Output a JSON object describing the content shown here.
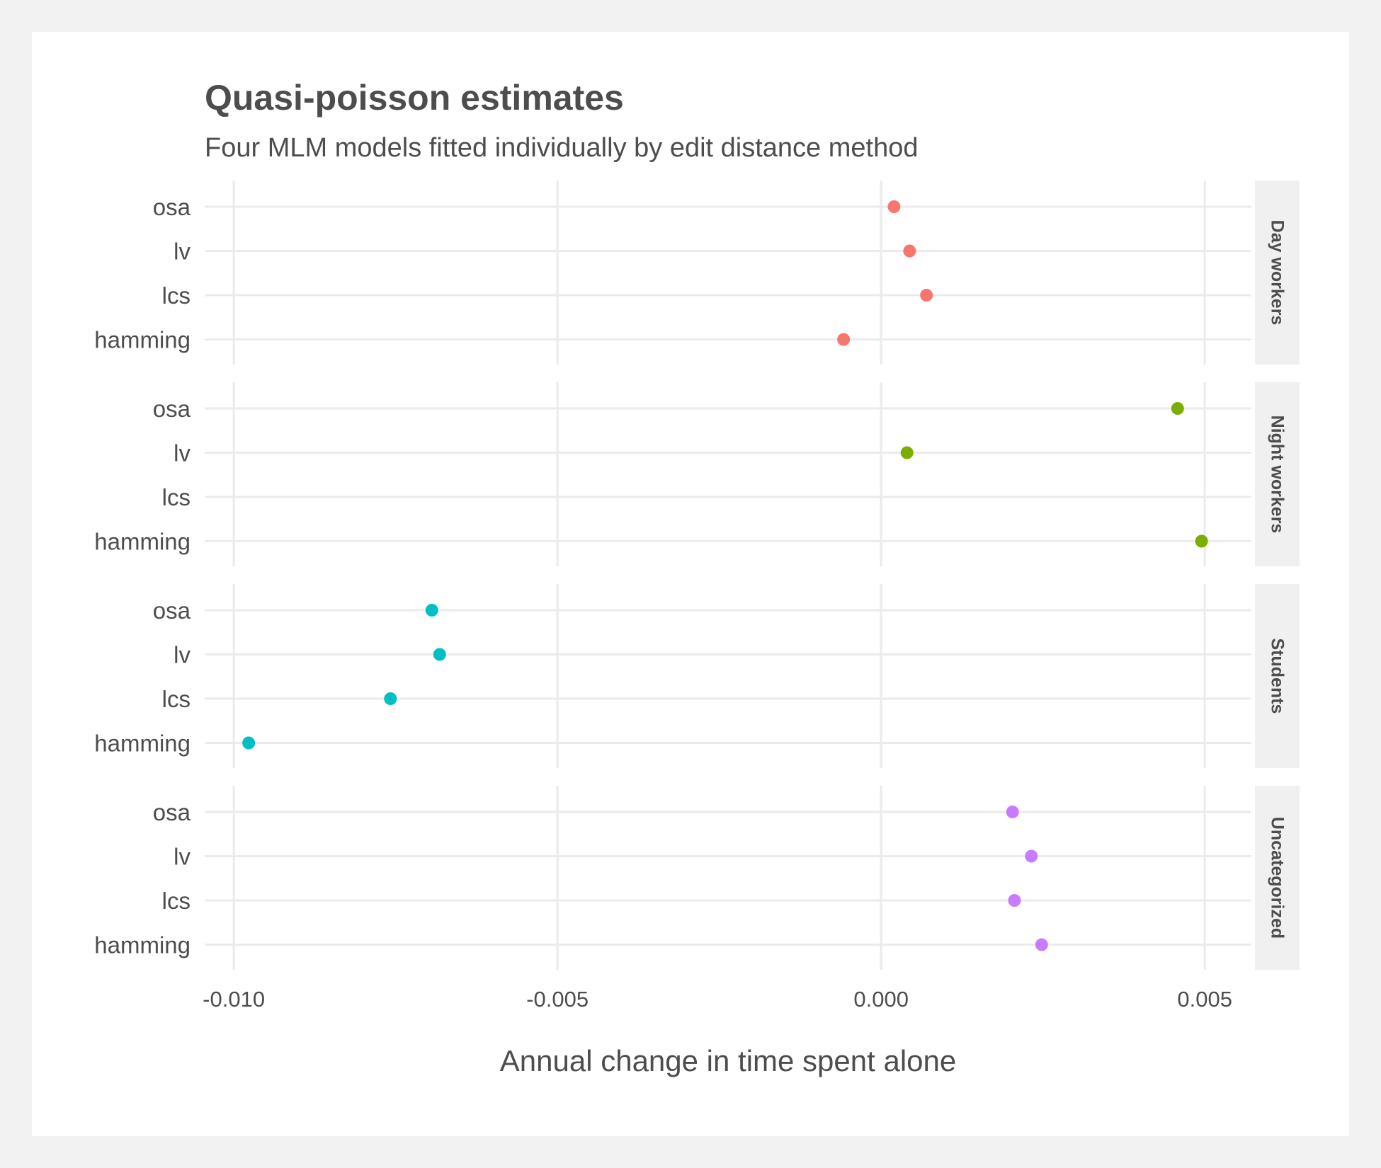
{
  "chart_data": {
    "type": "scatter",
    "title": "Quasi-poisson estimates",
    "subtitle": "Four MLM models fitted individually by edit distance method",
    "xlabel": "Annual change in time spent alone",
    "ylabel": "",
    "xlim": [
      -0.01045,
      0.00572
    ],
    "x_ticks": [
      -0.01,
      -0.005,
      0.0,
      0.005
    ],
    "x_tick_labels": [
      "-0.010",
      "-0.005",
      "0.000",
      "0.005"
    ],
    "categories": [
      "osa",
      "lv",
      "lcs",
      "hamming"
    ],
    "grid": true,
    "legend": "none",
    "facets": [
      {
        "name": "Day workers",
        "color": "#F8766D",
        "values": [
          0.0002,
          0.00044,
          0.0007,
          -0.00058
        ]
      },
      {
        "name": "Night workers",
        "color": "#7CAE00",
        "values": [
          0.00458,
          0.0004,
          null,
          0.00495
        ]
      },
      {
        "name": "Students",
        "color": "#00BFC4",
        "values": [
          -0.00694,
          -0.00682,
          -0.00758,
          -0.00977
        ]
      },
      {
        "name": "Uncategorized",
        "color": "#C77CFF",
        "values": [
          0.00203,
          0.00232,
          0.00206,
          0.00248
        ]
      }
    ]
  }
}
